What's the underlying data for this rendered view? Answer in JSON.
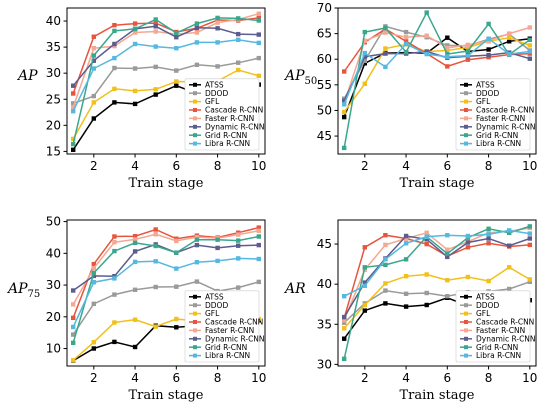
{
  "chart_data": [
    {
      "type": "line",
      "ylabel": "AP",
      "xlabel": "Train stage",
      "xlim": [
        0.7,
        10.3
      ],
      "ylim": [
        14.5,
        42.5
      ],
      "xticks": [
        2,
        4,
        6,
        8,
        10
      ],
      "yticks": [
        15,
        20,
        25,
        30,
        35,
        40
      ],
      "legend_position": "lower-right",
      "x": [
        1,
        2,
        3,
        4,
        5,
        6,
        7,
        8,
        9,
        10
      ],
      "series": [
        {
          "name": "ATSS",
          "color": "#000000",
          "values": [
            15.3,
            21.3,
            24.4,
            24.1,
            25.9,
            27.6,
            26.1,
            27.1,
            27.0,
            27.8
          ]
        },
        {
          "name": "DDOD",
          "color": "#9a9a9a",
          "values": [
            24.2,
            25.6,
            31.0,
            30.9,
            31.2,
            30.5,
            31.6,
            31.3,
            32.0,
            32.9
          ]
        },
        {
          "name": "GFL",
          "color": "#f2c01a",
          "values": [
            17.4,
            24.4,
            27.0,
            26.6,
            26.9,
            28.4,
            28.3,
            28.5,
            30.6,
            29.5
          ]
        },
        {
          "name": "Cascade R-CNN",
          "color": "#e8553c",
          "values": [
            26.1,
            37.0,
            39.2,
            39.5,
            39.6,
            37.9,
            38.6,
            40.2,
            40.1,
            40.6
          ]
        },
        {
          "name": "Faster R-CNN",
          "color": "#f4a792",
          "values": [
            23.5,
            34.8,
            35.2,
            37.8,
            38.0,
            37.5,
            37.8,
            39.7,
            40.3,
            41.4
          ]
        },
        {
          "name": "Dynamic R-CNN",
          "color": "#5c5c8e",
          "values": [
            27.6,
            32.4,
            35.6,
            38.5,
            39.0,
            36.9,
            38.7,
            38.6,
            37.5,
            37.4
          ]
        },
        {
          "name": "Grid R-CNN",
          "color": "#3aa78d",
          "values": [
            16.4,
            33.4,
            38.1,
            38.5,
            40.3,
            37.7,
            39.5,
            40.6,
            40.5,
            40.1
          ]
        },
        {
          "name": "Libra R-CNN",
          "color": "#55b8e0",
          "values": [
            22.7,
            30.9,
            32.9,
            35.6,
            35.1,
            34.8,
            35.9,
            35.9,
            36.4,
            35.8
          ]
        }
      ]
    },
    {
      "type": "line",
      "ylabel": "AP50",
      "xlabel": "Train stage",
      "xlim": [
        0.7,
        10.3
      ],
      "ylim": [
        41.5,
        70
      ],
      "xticks": [
        2,
        4,
        6,
        8,
        10
      ],
      "yticks": [
        45,
        50,
        55,
        60,
        65,
        70
      ],
      "legend_position": "lower-right",
      "x": [
        1,
        2,
        3,
        4,
        5,
        6,
        7,
        8,
        9,
        10
      ],
      "series": [
        {
          "name": "ATSS",
          "color": "#000000",
          "values": [
            48.7,
            59.2,
            61.2,
            61.3,
            61.2,
            64.2,
            61.5,
            61.9,
            63.5,
            64.0
          ]
        },
        {
          "name": "DDOD",
          "color": "#9a9a9a",
          "values": [
            52.3,
            59.7,
            66.4,
            65.3,
            64.3,
            62.7,
            62.6,
            63.9,
            64.9,
            61.7
          ]
        },
        {
          "name": "GFL",
          "color": "#f2c01a",
          "values": [
            49.7,
            55.2,
            62.1,
            62.9,
            61.5,
            61.7,
            62.3,
            63.5,
            64.2,
            62.7
          ]
        },
        {
          "name": "Cascade R-CNN",
          "color": "#e8553c",
          "values": [
            57.6,
            63.3,
            65.9,
            63.5,
            61.1,
            58.6,
            59.9,
            60.4,
            60.9,
            61.1
          ]
        },
        {
          "name": "Faster R-CNN",
          "color": "#f4a792",
          "values": [
            51.5,
            63.6,
            65.2,
            64.3,
            64.6,
            62.2,
            62.8,
            63.6,
            65.0,
            66.2
          ]
        },
        {
          "name": "Dynamic R-CNN",
          "color": "#5c5c8e",
          "values": [
            51.9,
            60.5,
            61.1,
            61.1,
            61.5,
            60.3,
            60.6,
            60.8,
            61.3,
            60.1
          ]
        },
        {
          "name": "Grid R-CNN",
          "color": "#3aa78d",
          "values": [
            42.7,
            65.3,
            66.1,
            61.4,
            69.1,
            61.0,
            61.6,
            66.9,
            60.9,
            63.8
          ]
        },
        {
          "name": "Libra R-CNN",
          "color": "#55b8e0",
          "values": [
            51.2,
            61.2,
            58.5,
            63.0,
            61.0,
            60.5,
            60.7,
            64.0,
            61.0,
            61.5
          ]
        }
      ]
    },
    {
      "type": "line",
      "ylabel": "AP75",
      "xlabel": "Train stage",
      "xlim": [
        0.7,
        10.3
      ],
      "ylim": [
        4.5,
        50.5
      ],
      "xticks": [
        2,
        4,
        6,
        8,
        10
      ],
      "yticks": [
        10,
        20,
        30,
        40,
        50
      ],
      "legend_position": "lower-right",
      "x": [
        1,
        2,
        3,
        4,
        5,
        6,
        7,
        8,
        9,
        10
      ],
      "series": [
        {
          "name": "ATSS",
          "color": "#000000",
          "values": [
            6.2,
            10.0,
            12.1,
            10.5,
            17.2,
            16.7,
            17.2,
            18.1,
            18.3,
            18.9
          ]
        },
        {
          "name": "DDOD",
          "color": "#9a9a9a",
          "values": [
            14.4,
            24.1,
            27.0,
            28.5,
            29.4,
            29.5,
            31.1,
            28.1,
            29.2,
            31.0
          ]
        },
        {
          "name": "GFL",
          "color": "#f2c01a",
          "values": [
            6.3,
            12.0,
            18.2,
            19.1,
            16.9,
            19.3,
            18.7,
            19.7,
            20.4,
            19.3
          ]
        },
        {
          "name": "Cascade R-CNN",
          "color": "#e8553c",
          "values": [
            19.7,
            36.6,
            45.3,
            45.4,
            47.5,
            44.6,
            45.6,
            45.0,
            46.5,
            48.1
          ]
        },
        {
          "name": "Faster R-CNN",
          "color": "#f4a792",
          "values": [
            23.9,
            35.3,
            43.5,
            44.4,
            46.0,
            43.9,
            45.1,
            44.8,
            45.9,
            47.1
          ]
        },
        {
          "name": "Dynamic R-CNN",
          "color": "#5c5c8e",
          "values": [
            28.3,
            32.9,
            32.8,
            40.6,
            42.8,
            40.2,
            42.6,
            41.7,
            42.4,
            42.6
          ]
        },
        {
          "name": "Grid R-CNN",
          "color": "#3aa78d",
          "values": [
            11.8,
            33.8,
            40.7,
            43.3,
            42.3,
            40.2,
            44.3,
            44.3,
            44.0,
            45.3
          ]
        },
        {
          "name": "Libra R-CNN",
          "color": "#55b8e0",
          "values": [
            16.8,
            30.9,
            32.1,
            37.3,
            37.5,
            35.2,
            37.2,
            37.6,
            38.4,
            38.2
          ]
        }
      ]
    },
    {
      "type": "line",
      "ylabel": "AR",
      "xlabel": "Train stage",
      "xlim": [
        0.7,
        10.3
      ],
      "ylim": [
        29.8,
        48
      ],
      "xticks": [
        2,
        4,
        6,
        8,
        10
      ],
      "yticks": [
        30,
        35,
        40,
        45
      ],
      "legend_position": "lower-right",
      "x": [
        1,
        2,
        3,
        4,
        5,
        6,
        7,
        8,
        9,
        10
      ],
      "series": [
        {
          "name": "ATSS",
          "color": "#000000",
          "values": [
            33.2,
            36.7,
            37.6,
            37.2,
            37.4,
            38.3,
            37.3,
            37.7,
            38.1,
            38.0
          ]
        },
        {
          "name": "DDOD",
          "color": "#9a9a9a",
          "values": [
            35.2,
            37.6,
            39.2,
            38.8,
            38.9,
            38.5,
            39.0,
            39.1,
            39.4,
            40.3
          ]
        },
        {
          "name": "GFL",
          "color": "#f2c01a",
          "values": [
            34.5,
            37.4,
            40.1,
            41.0,
            41.2,
            40.5,
            40.9,
            40.4,
            42.1,
            40.6
          ]
        },
        {
          "name": "Cascade R-CNN",
          "color": "#e8553c",
          "values": [
            35.8,
            44.6,
            46.1,
            45.7,
            45.0,
            43.5,
            44.6,
            45.1,
            44.7,
            44.9
          ]
        },
        {
          "name": "Faster R-CNN",
          "color": "#f4a792",
          "values": [
            35.5,
            41.8,
            44.9,
            45.7,
            46.4,
            44.3,
            45.3,
            46.4,
            46.6,
            47.0
          ]
        },
        {
          "name": "Dynamic R-CNN",
          "color": "#5c5c8e",
          "values": [
            35.9,
            40.2,
            43.2,
            46.0,
            45.6,
            43.4,
            45.2,
            45.7,
            44.8,
            45.7
          ]
        },
        {
          "name": "Grid R-CNN",
          "color": "#3aa78d",
          "values": [
            30.7,
            42.1,
            42.4,
            43.1,
            45.9,
            43.8,
            45.8,
            46.9,
            46.4,
            47.2
          ]
        },
        {
          "name": "Libra R-CNN",
          "color": "#55b8e0",
          "values": [
            38.5,
            39.8,
            43.1,
            45.1,
            45.9,
            46.1,
            46.0,
            46.2,
            46.7,
            46.3
          ]
        }
      ]
    }
  ]
}
